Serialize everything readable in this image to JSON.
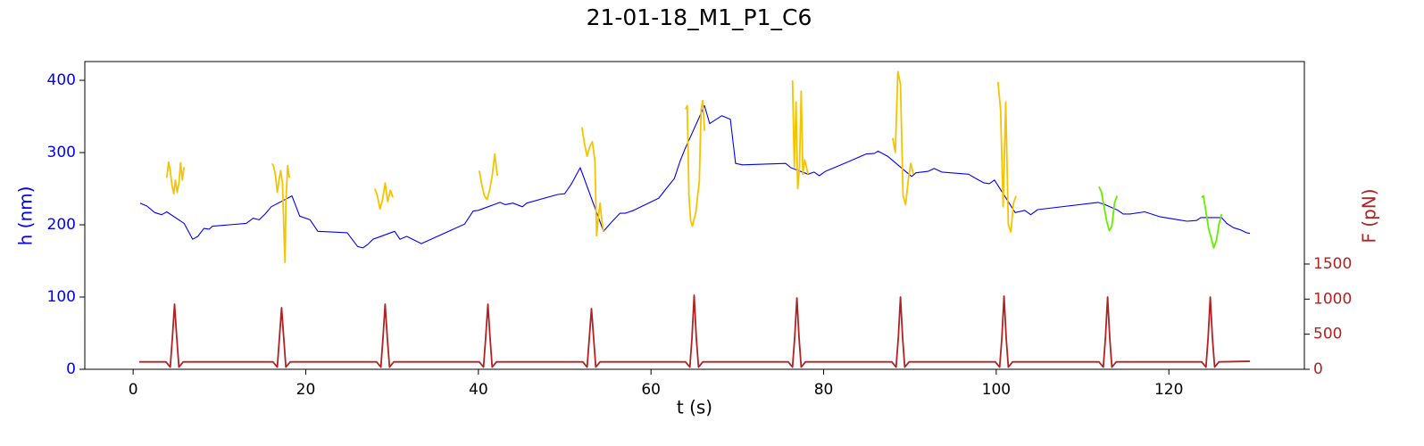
{
  "chart_data": {
    "type": "line",
    "title": "21-01-18_M1_P1_C6",
    "xlabel": "t (s)",
    "ylabel": "h (nm)",
    "y2label": "F (pN)",
    "ycolor": "#0000ff",
    "y2color": "#b22222",
    "xlim": [
      -5.6,
      135.7
    ],
    "xticks": [
      0,
      20,
      40,
      60,
      80,
      100,
      120
    ],
    "ylim": [
      0,
      426
    ],
    "yticks": [
      0,
      100,
      200,
      300,
      400
    ],
    "y2lim": [
      0,
      4385
    ],
    "y2ticks": [
      0,
      500,
      1000,
      1500
    ],
    "series": [
      {
        "color": "#0000ff",
        "x": [
          0.8,
          1.6,
          2.5,
          3.3,
          3.9,
          5.9,
          6.9,
          7.5,
          8.2,
          8.8,
          9.2,
          13.1,
          13.9,
          14.6,
          15.3,
          16.0,
          18.4,
          19.3,
          20.5,
          21.4,
          24.8,
          26.0,
          26.6,
          27.2,
          27.8,
          30.3,
          30.9,
          31.7,
          33.4,
          38.4,
          39.4,
          40.0,
          42.5,
          43.1,
          44.0,
          45.1,
          45.6,
          49.2,
          50.0,
          50.8,
          51.8,
          54.5,
          55.3,
          56.4,
          57.0,
          58.0,
          60.9,
          61.9,
          62.7,
          63.4,
          63.9,
          66.2,
          66.8,
          68.2,
          69.2,
          69.8,
          70.6,
          75.6,
          76.2,
          78.2,
          78.9,
          79.5,
          80.2,
          83.0,
          84.9,
          85.9,
          86.3,
          87.4,
          90.2,
          90.7,
          92.1,
          92.8,
          93.7,
          96.8,
          97.8,
          98.6,
          99.2,
          99.8,
          102.2,
          103.3,
          104.0,
          104.8,
          111.8,
          112.6,
          114.1,
          114.7,
          115.5,
          117.2,
          119.0,
          121.1,
          122.1,
          123.2,
          123.7,
          126.1,
          126.7,
          127.5,
          128.3,
          129.0,
          129.4
        ],
        "values": [
          230,
          226,
          217,
          214,
          218,
          202,
          180,
          184,
          195,
          194,
          198,
          202,
          209,
          207,
          215,
          225,
          240,
          212,
          207,
          191,
          189,
          170,
          168,
          173,
          180,
          191,
          180,
          184,
          174,
          201,
          219,
          220,
          231,
          228,
          230,
          225,
          230,
          242,
          243,
          257,
          279,
          191,
          202,
          216,
          216,
          220,
          237,
          252,
          264,
          289,
          304,
          365,
          340,
          351,
          346,
          285,
          283,
          285,
          279,
          270,
          273,
          268,
          274,
          288,
          298,
          299,
          302,
          295,
          267,
          272,
          274,
          278,
          273,
          270,
          263,
          258,
          257,
          262,
          217,
          220,
          214,
          221,
          231,
          228,
          220,
          215,
          215,
          218,
          211,
          207,
          205,
          206,
          210,
          210,
          202,
          196,
          193,
          189,
          188
        ]
      },
      {
        "color": "#f5c400",
        "x": [
          3.9,
          4.1,
          4.3,
          4.5,
          4.7,
          4.9,
          5.1,
          5.3,
          5.5,
          5.7,
          5.9,
          null,
          16.1,
          16.3,
          16.5,
          16.7,
          16.9,
          17.1,
          17.3,
          17.5,
          17.6,
          17.7,
          17.9,
          18.1,
          null,
          28.0,
          28.3,
          28.6,
          28.9,
          29.2,
          29.5,
          29.8,
          30.1,
          null,
          40.1,
          40.4,
          40.7,
          41.0,
          41.3,
          41.6,
          41.9,
          42.2,
          null,
          52.0,
          52.3,
          52.6,
          52.9,
          53.2,
          53.5,
          53.7,
          53.9,
          54.1,
          54.3,
          54.5,
          null,
          64.0,
          64.2,
          64.4,
          64.6,
          64.8,
          65.0,
          65.2,
          65.4,
          65.6,
          65.8,
          66.0,
          66.2,
          null,
          76.4,
          76.6,
          76.8,
          77.0,
          77.2,
          77.4,
          77.6,
          77.8,
          78.0,
          78.2,
          null,
          88.0,
          88.3,
          88.6,
          88.9,
          89.2,
          89.5,
          89.8,
          90.1,
          90.4,
          null,
          100.2,
          100.5,
          100.8,
          101.1,
          101.4,
          101.7,
          102.0,
          102.3
        ],
        "values": [
          265,
          287,
          275,
          255,
          243,
          262,
          245,
          258,
          286,
          262,
          280,
          null,
          285,
          280,
          268,
          245,
          262,
          275,
          258,
          180,
          148,
          230,
          282,
          265,
          null,
          250,
          240,
          222,
          235,
          258,
          232,
          248,
          238,
          null,
          275,
          255,
          240,
          235,
          248,
          268,
          298,
          268,
          null,
          335,
          312,
          295,
          308,
          315,
          290,
          185,
          210,
          230,
          205,
          191,
          null,
          360,
          365,
          240,
          205,
          198,
          208,
          218,
          240,
          260,
          360,
          372,
          330,
          null,
          400,
          280,
          370,
          250,
          280,
          385,
          270,
          290,
          280,
          270,
          null,
          320,
          300,
          412,
          395,
          240,
          228,
          262,
          285,
          270,
          null,
          398,
          360,
          225,
          370,
          200,
          190,
          230,
          240
        ]
      },
      {
        "color": "#66ee00",
        "x": [
          111.9,
          112.2,
          112.5,
          112.8,
          113.1,
          113.4,
          113.7,
          114.0,
          null,
          123.8,
          124.0,
          124.3,
          124.6,
          124.9,
          125.2,
          125.5,
          125.8,
          126.1
        ],
        "values": [
          253,
          245,
          225,
          205,
          192,
          198,
          230,
          240,
          null,
          238,
          240,
          218,
          195,
          182,
          168,
          178,
          200,
          215
        ]
      },
      {
        "color": "#b22222",
        "axis": "y2",
        "x": [
          0.7,
          3.8,
          4.3,
          4.55,
          4.8,
          5.05,
          5.3,
          5.8,
          16.2,
          16.7,
          16.95,
          17.2,
          17.45,
          17.7,
          18.2,
          28.2,
          28.7,
          28.95,
          29.2,
          29.45,
          29.7,
          30.2,
          40.1,
          40.6,
          40.85,
          41.1,
          41.35,
          41.6,
          42.1,
          52.1,
          52.6,
          52.85,
          53.1,
          53.35,
          53.6,
          54.1,
          64.0,
          64.5,
          64.75,
          65.0,
          65.25,
          65.5,
          66.0,
          75.9,
          76.4,
          76.65,
          76.9,
          77.15,
          77.4,
          77.9,
          87.9,
          88.4,
          88.65,
          88.9,
          89.15,
          89.4,
          89.9,
          99.9,
          100.4,
          100.65,
          100.9,
          101.15,
          101.4,
          101.9,
          111.9,
          112.4,
          112.65,
          112.9,
          113.15,
          113.4,
          113.9,
          123.8,
          124.3,
          124.55,
          124.8,
          125.05,
          125.3,
          125.8,
          129.4
        ],
        "values": [
          105,
          105,
          30,
          450,
          928,
          450,
          30,
          105,
          105,
          30,
          450,
          877,
          450,
          30,
          105,
          105,
          30,
          450,
          928,
          450,
          30,
          105,
          105,
          30,
          450,
          928,
          450,
          30,
          105,
          105,
          30,
          450,
          864,
          450,
          30,
          105,
          105,
          30,
          450,
          1055,
          450,
          30,
          105,
          105,
          30,
          450,
          1017,
          450,
          30,
          105,
          105,
          30,
          450,
          1029,
          450,
          30,
          105,
          105,
          30,
          450,
          1042,
          450,
          30,
          105,
          105,
          30,
          450,
          1029,
          450,
          30,
          105,
          105,
          30,
          450,
          1029,
          450,
          30,
          105,
          115
        ]
      }
    ]
  }
}
